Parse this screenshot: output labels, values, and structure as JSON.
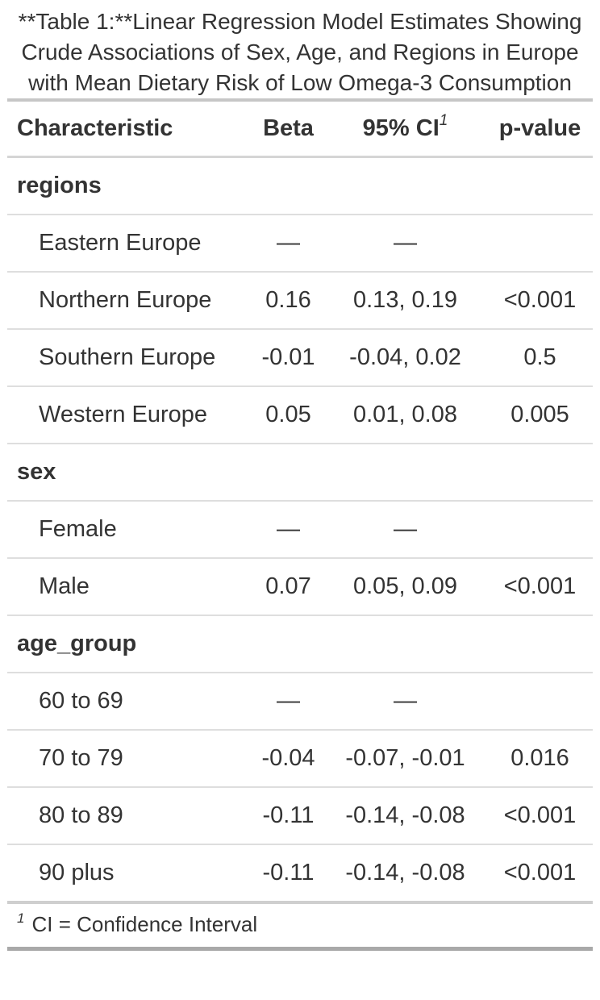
{
  "chart_data": {
    "type": "table",
    "title": "**Table 1:**Linear Regression Model Estimates Showing Crude Associations of Sex, Age, and Regions in Europe with Mean Dietary Risk of Low Omega-3 Consumption",
    "columns": [
      "Characteristic",
      "Beta",
      "95% CI",
      "p-value"
    ],
    "footnote_marker": "1",
    "footnote": "CI = Confidence Interval",
    "rows": [
      {
        "type": "group",
        "label": "regions",
        "beta": "",
        "ci": "",
        "p": ""
      },
      {
        "type": "level",
        "label": "Eastern Europe",
        "beta": "—",
        "ci": "—",
        "p": ""
      },
      {
        "type": "level",
        "label": "Northern Europe",
        "beta": "0.16",
        "ci": "0.13, 0.19",
        "p": "<0.001"
      },
      {
        "type": "level",
        "label": "Southern Europe",
        "beta": "-0.01",
        "ci": "-0.04, 0.02",
        "p": "0.5"
      },
      {
        "type": "level",
        "label": "Western Europe",
        "beta": "0.05",
        "ci": "0.01, 0.08",
        "p": "0.005"
      },
      {
        "type": "group",
        "label": "sex",
        "beta": "",
        "ci": "",
        "p": ""
      },
      {
        "type": "level",
        "label": "Female",
        "beta": "—",
        "ci": "—",
        "p": ""
      },
      {
        "type": "level",
        "label": "Male",
        "beta": "0.07",
        "ci": "0.05, 0.09",
        "p": "<0.001"
      },
      {
        "type": "group",
        "label": "age_group",
        "beta": "",
        "ci": "",
        "p": ""
      },
      {
        "type": "level",
        "label": "60 to 69",
        "beta": "—",
        "ci": "—",
        "p": ""
      },
      {
        "type": "level",
        "label": "70 to 79",
        "beta": "-0.04",
        "ci": "-0.07, -0.01",
        "p": "0.016"
      },
      {
        "type": "level",
        "label": "80 to 89",
        "beta": "-0.11",
        "ci": "-0.14, -0.08",
        "p": "<0.001"
      },
      {
        "type": "level",
        "label": "90 plus",
        "beta": "-0.11",
        "ci": "-0.14, -0.08",
        "p": "<0.001"
      }
    ]
  },
  "colors": {
    "text": "#333333",
    "row_line": "#dedede",
    "header_line": "#d5d5d5",
    "title_line": "#c6c6c6",
    "footnote_top_line": "#cfcfcf",
    "table_bottom_line": "#a9a9a9",
    "background": "#ffffff"
  }
}
